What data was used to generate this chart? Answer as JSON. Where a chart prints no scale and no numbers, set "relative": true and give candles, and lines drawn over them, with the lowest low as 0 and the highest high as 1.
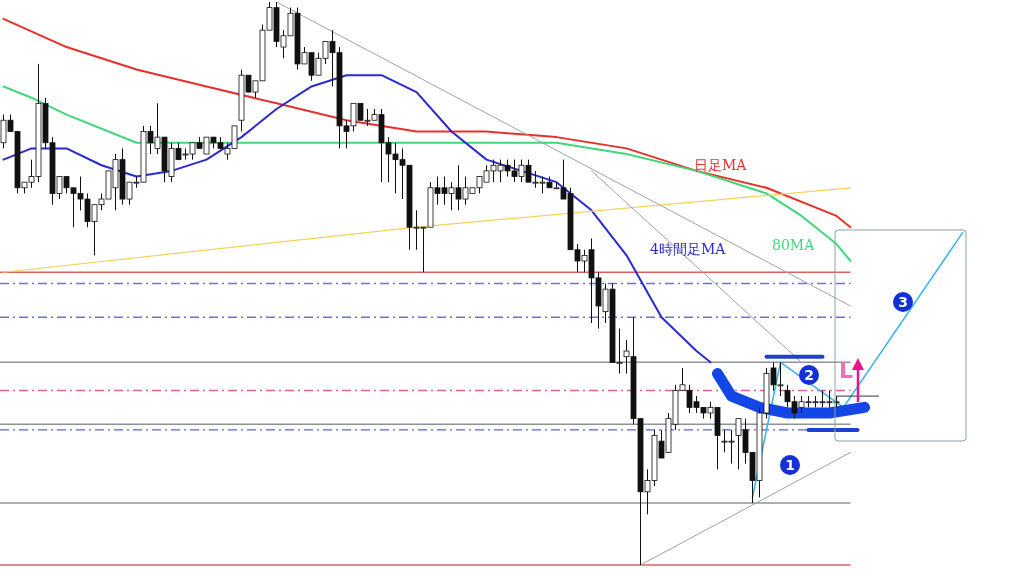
{
  "chart_data": {
    "type": "candlestick",
    "relative": true,
    "categories": [
      null,
      null,
      null,
      null,
      null,
      null,
      null,
      null,
      null,
      null,
      null,
      null,
      null,
      null,
      null,
      null,
      null,
      null,
      null,
      null,
      null,
      null,
      null,
      null,
      null,
      null,
      null,
      null,
      null,
      null,
      null,
      null,
      null,
      null,
      null,
      null,
      null,
      null,
      null,
      null,
      null,
      null,
      null,
      null,
      null,
      null,
      null,
      null,
      null,
      null,
      null,
      null,
      null,
      null,
      null,
      null,
      null,
      null,
      null,
      null,
      null,
      null,
      null,
      null,
      null,
      null,
      null,
      null,
      null,
      null,
      null,
      null,
      null,
      null,
      null,
      null,
      null,
      null,
      null,
      null,
      null,
      null,
      null,
      null,
      null,
      null,
      null,
      null,
      null,
      null,
      null,
      null,
      null,
      null,
      null,
      null,
      null,
      null,
      null,
      null,
      null,
      null,
      null,
      null,
      null,
      null,
      null,
      null,
      null,
      null,
      null,
      null,
      null,
      null,
      null,
      null,
      null,
      null,
      null,
      null,
      null,
      null,
      null,
      null,
      null,
      null,
      null,
      null,
      null,
      null,
      null,
      null,
      null,
      null,
      null,
      null,
      null,
      null
    ],
    "ohlc": [
      [
        0.75,
        0.8,
        0.74,
        0.79
      ],
      [
        0.79,
        0.8,
        0.77,
        0.77
      ],
      [
        0.77,
        0.77,
        0.66,
        0.67
      ],
      [
        0.67,
        0.68,
        0.66,
        0.68
      ],
      [
        0.68,
        0.72,
        0.67,
        0.69
      ],
      [
        0.69,
        0.89,
        0.68,
        0.82
      ],
      [
        0.82,
        0.83,
        0.74,
        0.75
      ],
      [
        0.75,
        0.76,
        0.64,
        0.66
      ],
      [
        0.66,
        0.69,
        0.65,
        0.69
      ],
      [
        0.69,
        0.69,
        0.66,
        0.67
      ],
      [
        0.67,
        0.67,
        0.6,
        0.66
      ],
      [
        0.66,
        0.69,
        0.63,
        0.65
      ],
      [
        0.65,
        0.66,
        0.6,
        0.61
      ],
      [
        0.61,
        0.64,
        0.55,
        0.64
      ],
      [
        0.64,
        0.66,
        0.63,
        0.65
      ],
      [
        0.65,
        0.7,
        0.65,
        0.7
      ],
      [
        0.67,
        0.73,
        0.63,
        0.72
      ],
      [
        0.72,
        0.74,
        0.64,
        0.65
      ],
      [
        0.65,
        0.68,
        0.64,
        0.68
      ],
      [
        0.68,
        0.69,
        0.67,
        0.68
      ],
      [
        0.68,
        0.78,
        0.68,
        0.77
      ],
      [
        0.77,
        0.78,
        0.73,
        0.75
      ],
      [
        0.74,
        0.82,
        0.73,
        0.76
      ],
      [
        0.76,
        0.76,
        0.68,
        0.7
      ],
      [
        0.69,
        0.75,
        0.68,
        0.74
      ],
      [
        0.74,
        0.75,
        0.72,
        0.72
      ],
      [
        0.73,
        0.74,
        0.72,
        0.73
      ],
      [
        0.73,
        0.75,
        0.72,
        0.75
      ],
      [
        0.75,
        0.76,
        0.74,
        0.74
      ],
      [
        0.73,
        0.76,
        0.73,
        0.76
      ],
      [
        0.76,
        0.76,
        0.74,
        0.75
      ],
      [
        0.75,
        0.76,
        0.74,
        0.74
      ],
      [
        0.73,
        0.75,
        0.72,
        0.74
      ],
      [
        0.74,
        0.78,
        0.74,
        0.78
      ],
      [
        0.79,
        0.88,
        0.77,
        0.87
      ],
      [
        0.87,
        0.87,
        0.84,
        0.84
      ],
      [
        0.84,
        0.86,
        0.83,
        0.86
      ],
      [
        0.86,
        0.96,
        0.86,
        0.95
      ],
      [
        0.95,
        1.0,
        0.95,
        0.99
      ],
      [
        0.99,
        1.0,
        0.92,
        0.93
      ],
      [
        0.92,
        0.95,
        0.9,
        0.94
      ],
      [
        0.94,
        0.99,
        0.94,
        0.98
      ],
      [
        0.98,
        0.99,
        0.88,
        0.89
      ],
      [
        0.89,
        0.92,
        0.89,
        0.91
      ],
      [
        0.91,
        0.91,
        0.86,
        0.87
      ],
      [
        0.87,
        0.91,
        0.87,
        0.9
      ],
      [
        0.9,
        0.93,
        0.89,
        0.93
      ],
      [
        0.93,
        0.95,
        0.85,
        0.91
      ],
      [
        0.91,
        0.92,
        0.74,
        0.78
      ],
      [
        0.78,
        0.79,
        0.74,
        0.77
      ],
      [
        0.78,
        0.82,
        0.77,
        0.82
      ],
      [
        0.82,
        0.82,
        0.79,
        0.79
      ],
      [
        0.79,
        0.81,
        0.78,
        0.79
      ],
      [
        0.79,
        0.81,
        0.79,
        0.8
      ],
      [
        0.8,
        0.81,
        0.68,
        0.75
      ],
      [
        0.75,
        0.76,
        0.68,
        0.73
      ],
      [
        0.73,
        0.75,
        0.66,
        0.72
      ],
      [
        0.72,
        0.74,
        0.65,
        0.71
      ],
      [
        0.71,
        0.71,
        0.56,
        0.6
      ],
      [
        0.6,
        0.63,
        0.56,
        0.6
      ],
      [
        0.6,
        0.6,
        0.52,
        0.6
      ],
      [
        0.6,
        0.68,
        0.6,
        0.67
      ],
      [
        0.67,
        0.69,
        0.64,
        0.66
      ],
      [
        0.67,
        0.69,
        0.64,
        0.66
      ],
      [
        0.66,
        0.68,
        0.63,
        0.67
      ],
      [
        0.67,
        0.71,
        0.63,
        0.65
      ],
      [
        0.65,
        0.69,
        0.64,
        0.67
      ],
      [
        0.66,
        0.67,
        0.66,
        0.67
      ],
      [
        0.67,
        0.69,
        0.66,
        0.69
      ],
      [
        0.68,
        0.71,
        0.68,
        0.7
      ],
      [
        0.7,
        0.72,
        0.68,
        0.71
      ],
      [
        0.7,
        0.72,
        0.68,
        0.71
      ],
      [
        0.71,
        0.72,
        0.69,
        0.7
      ],
      [
        0.7,
        0.72,
        0.68,
        0.69
      ],
      [
        0.69,
        0.72,
        0.68,
        0.71
      ],
      [
        0.71,
        0.72,
        0.68,
        0.68
      ],
      [
        0.68,
        0.7,
        0.67,
        0.68
      ],
      [
        0.68,
        0.69,
        0.66,
        0.68
      ],
      [
        0.68,
        0.69,
        0.67,
        0.67
      ],
      [
        0.67,
        0.68,
        0.67,
        0.67
      ],
      [
        0.67,
        0.72,
        0.65,
        0.65
      ],
      [
        0.66,
        0.67,
        0.56,
        0.56
      ],
      [
        0.56,
        0.57,
        0.52,
        0.54
      ],
      [
        0.54,
        0.56,
        0.52,
        0.55
      ],
      [
        0.56,
        0.58,
        0.43,
        0.51
      ],
      [
        0.51,
        0.52,
        0.42,
        0.46
      ],
      [
        0.45,
        0.5,
        0.43,
        0.49
      ],
      [
        0.49,
        0.5,
        0.36,
        0.36
      ],
      [
        0.36,
        0.42,
        0.34,
        0.36
      ],
      [
        0.37,
        0.4,
        0.34,
        0.38
      ],
      [
        0.37,
        0.44,
        0.25,
        0.26
      ],
      [
        0.26,
        0.26,
        0,
        0.13
      ],
      [
        0.13,
        0.17,
        0.09,
        0.15
      ],
      [
        0.15,
        0.24,
        0.14,
        0.23
      ],
      [
        0.22,
        0.24,
        0.19,
        0.19
      ],
      [
        0.2,
        0.27,
        0.2,
        0.26
      ],
      [
        0.25,
        0.32,
        0.24,
        0.31
      ],
      [
        0.31,
        0.35,
        0.31,
        0.32
      ],
      [
        0.31,
        0.32,
        0.27,
        0.28
      ],
      [
        0.29,
        0.3,
        0.27,
        0.28
      ],
      [
        0.28,
        0.28,
        0.26,
        0.27
      ],
      [
        0.27,
        0.29,
        0.26,
        0.28
      ],
      [
        0.28,
        0.28,
        0.17,
        0.23
      ],
      [
        0.22,
        0.24,
        0.2,
        0.22
      ],
      [
        0.22,
        0.24,
        0.18,
        0.22
      ],
      [
        0.23,
        0.26,
        0.17,
        0.26
      ],
      [
        0.24,
        0.26,
        0.18,
        0.2
      ],
      [
        0.2,
        0.2,
        0.11,
        0.15
      ],
      [
        0.15,
        0.28,
        0.12,
        0.27
      ],
      [
        0.27,
        0.35,
        0.26,
        0.34
      ],
      [
        0.35,
        0.36,
        0.31,
        0.32
      ],
      [
        0.32,
        0.36,
        0.3,
        0.32
      ],
      [
        0.31,
        0.32,
        0.28,
        0.29
      ],
      [
        0.29,
        0.3,
        0.26,
        0.27
      ],
      [
        0.28,
        0.3,
        0.27,
        0.29
      ],
      [
        0.29,
        0.3,
        0.28,
        0.29
      ],
      [
        0.29,
        0.3,
        0.28,
        0.29
      ],
      [
        0.29,
        0.31,
        0.28,
        0.29
      ],
      [
        0.29,
        0.31,
        0.28,
        0.29
      ],
      [
        0.29,
        0.3,
        0.28,
        0.29
      ],
      null,
      null,
      null,
      null,
      null,
      null,
      null,
      null,
      null,
      null,
      null,
      null,
      null,
      null,
      null,
      null,
      null,
      null
    ],
    "series": [
      {
        "type": "line",
        "name": "日足MA",
        "color": "#e8302a",
        "values": [
          0.97,
          null,
          null,
          null,
          null,
          null,
          null,
          null,
          null,
          0.92,
          null,
          null,
          null,
          null,
          null,
          null,
          null,
          null,
          null,
          0.88,
          null,
          null,
          null,
          null,
          null,
          null,
          null,
          null,
          null,
          0.85,
          null,
          null,
          null,
          null,
          null,
          null,
          null,
          null,
          null,
          0.82,
          null,
          null,
          null,
          null,
          null,
          null,
          null,
          null,
          null,
          0.79,
          null,
          null,
          null,
          null,
          null,
          null,
          null,
          null,
          null,
          0.77,
          null,
          null,
          null,
          null,
          null,
          null,
          null,
          null,
          null,
          0.77,
          null,
          null,
          null,
          null,
          null,
          null,
          null,
          null,
          null,
          0.76,
          null,
          null,
          null,
          null,
          null,
          null,
          null,
          null,
          null,
          0.74,
          null,
          null,
          null,
          null,
          null,
          null,
          null,
          null,
          null,
          0.7,
          null,
          null,
          null,
          null,
          null,
          null,
          null,
          null,
          null,
          0.67,
          null,
          null,
          null,
          null,
          null,
          null,
          null,
          null,
          null,
          0.62,
          null,
          0.6,
          null,
          null,
          null,
          null,
          null,
          null,
          null,
          null,
          null,
          null,
          null,
          null,
          null,
          null,
          null,
          null
        ]
      },
      {
        "type": "line",
        "name": "80MA",
        "color": "#3fd77a",
        "values": [
          0.85,
          null,
          null,
          null,
          0.83,
          null,
          null,
          null,
          null,
          0.8,
          null,
          null,
          null,
          null,
          null,
          null,
          null,
          null,
          null,
          0.75,
          null,
          null,
          null,
          null,
          null,
          null,
          null,
          null,
          null,
          0.75,
          null,
          null,
          null,
          null,
          null,
          null,
          null,
          null,
          null,
          0.75,
          null,
          null,
          null,
          null,
          null,
          null,
          null,
          null,
          null,
          0.75,
          null,
          null,
          null,
          null,
          null,
          null,
          null,
          null,
          null,
          0.75,
          null,
          null,
          null,
          null,
          null,
          null,
          null,
          null,
          null,
          0.75,
          null,
          null,
          null,
          null,
          null,
          null,
          null,
          null,
          null,
          0.75,
          null,
          null,
          null,
          null,
          null,
          null,
          null,
          null,
          null,
          0.73,
          null,
          null,
          null,
          null,
          null,
          null,
          null,
          null,
          null,
          0.7,
          null,
          null,
          null,
          null,
          null,
          null,
          null,
          null,
          null,
          0.66,
          null,
          null,
          null,
          null,
          0.62,
          null,
          null,
          null,
          null,
          0.57,
          null,
          0.54,
          null,
          null,
          null,
          null,
          null,
          null,
          null,
          null,
          null,
          null,
          null,
          null,
          null,
          null,
          null,
          null
        ]
      },
      {
        "type": "line",
        "name": "4時間足MA",
        "color": "#2a2ad0",
        "values": [
          0.72,
          null,
          null,
          null,
          0.74,
          null,
          null,
          null,
          null,
          0.74,
          null,
          null,
          null,
          null,
          0.71,
          null,
          null,
          null,
          null,
          0.69,
          null,
          null,
          null,
          null,
          0.7,
          null,
          null,
          null,
          null,
          0.72,
          null,
          null,
          null,
          null,
          0.76,
          null,
          null,
          null,
          null,
          0.81,
          null,
          null,
          null,
          null,
          0.85,
          null,
          null,
          null,
          null,
          0.87,
          null,
          null,
          null,
          null,
          0.87,
          null,
          null,
          null,
          null,
          0.84,
          null,
          null,
          null,
          null,
          0.77,
          null,
          null,
          null,
          null,
          0.72,
          null,
          null,
          null,
          null,
          0.7,
          null,
          null,
          null,
          null,
          0.68,
          null,
          null,
          null,
          null,
          0.63,
          null,
          null,
          null,
          null,
          0.55,
          null,
          null,
          null,
          null,
          0.44,
          null,
          null,
          null,
          null,
          0.38,
          null,
          0.36,
          null,
          null,
          null,
          null,
          null,
          null,
          null,
          null,
          null,
          null,
          null,
          null,
          null,
          null,
          null,
          null,
          null,
          null,
          null,
          null,
          null,
          null,
          null,
          null,
          null,
          null,
          null,
          null,
          null,
          null,
          null,
          null,
          null,
          null,
          null,
          null
        ]
      },
      {
        "type": "line",
        "color": "#f5d25a",
        "values": [
          0.52,
          null,
          null,
          null,
          null,
          null,
          null,
          null,
          null,
          null,
          null,
          null,
          null,
          null,
          null,
          null,
          null,
          null,
          null,
          null,
          null,
          null,
          null,
          null,
          null,
          null,
          null,
          null,
          null,
          null,
          null,
          null,
          null,
          null,
          null,
          null,
          null,
          null,
          null,
          null,
          null,
          null,
          null,
          null,
          null,
          null,
          null,
          null,
          null,
          null,
          null,
          null,
          null,
          null,
          null,
          null,
          null,
          null,
          null,
          0.6,
          null,
          null,
          null,
          null,
          null,
          null,
          null,
          null,
          null,
          null,
          null,
          null,
          null,
          null,
          null,
          null,
          null,
          null,
          null,
          null,
          null,
          null,
          null,
          null,
          null,
          null,
          null,
          null,
          null,
          null,
          null,
          null,
          null,
          null,
          null,
          null,
          null,
          null,
          null,
          null,
          null,
          null,
          null,
          null,
          null,
          null,
          null,
          null,
          null,
          null,
          null,
          null,
          null,
          null,
          null,
          null,
          null,
          null,
          null,
          null,
          null,
          0.67,
          null,
          null,
          null,
          null,
          null,
          null,
          null,
          null,
          null,
          null,
          null,
          null,
          null,
          null,
          null,
          null
        ]
      },
      {
        "type": "line",
        "color": "#9aa4ae",
        "values": [
          null,
          null,
          null,
          null,
          null,
          null,
          null,
          null,
          null,
          null,
          null,
          null,
          null,
          null,
          null,
          null,
          null,
          null,
          null,
          null,
          null,
          null,
          null,
          null,
          null,
          null,
          null,
          null,
          null,
          null,
          null,
          null,
          null,
          null,
          null,
          null,
          null,
          null,
          null,
          1.0,
          null,
          null,
          null,
          null,
          null,
          null,
          null,
          null,
          null,
          null,
          null,
          null,
          null,
          null,
          null,
          null,
          null,
          null,
          null,
          null,
          null,
          null,
          null,
          null,
          null,
          null,
          null,
          null,
          null,
          null,
          null,
          null,
          null,
          null,
          null,
          null,
          null,
          null,
          null,
          null,
          null,
          null,
          null,
          null,
          null,
          null,
          null,
          null,
          null,
          null,
          null,
          null,
          null,
          null,
          null,
          null,
          null,
          null,
          null,
          null,
          null,
          null,
          null,
          null,
          null,
          null,
          null,
          null,
          null,
          null,
          null,
          null,
          null,
          null,
          null,
          null,
          null,
          null,
          null,
          null,
          null,
          0.46,
          null,
          null,
          null,
          null,
          null,
          null,
          null,
          null,
          null,
          null,
          null,
          null,
          null,
          null,
          null,
          null
        ]
      },
      {
        "type": "line",
        "color": "#9aa4ae",
        "values": [
          null,
          null,
          null,
          null,
          null,
          null,
          null,
          null,
          null,
          null,
          null,
          null,
          null,
          null,
          null,
          null,
          null,
          null,
          null,
          null,
          null,
          null,
          null,
          null,
          null,
          null,
          null,
          null,
          null,
          null,
          null,
          null,
          null,
          null,
          null,
          null,
          null,
          null,
          null,
          null,
          null,
          null,
          null,
          null,
          null,
          null,
          null,
          null,
          null,
          null,
          null,
          null,
          null,
          null,
          null,
          null,
          null,
          null,
          null,
          null,
          null,
          null,
          null,
          null,
          null,
          null,
          null,
          null,
          null,
          null,
          null,
          null,
          null,
          null,
          null,
          null,
          null,
          null,
          null,
          null,
          null,
          null,
          null,
          null,
          0.7,
          null,
          null,
          null,
          null,
          null,
          null,
          null,
          null,
          null,
          null,
          null,
          null,
          null,
          null,
          null,
          null,
          null,
          null,
          null,
          null,
          null,
          null,
          null,
          null,
          null,
          null,
          null,
          null,
          null,
          0.36,
          null,
          null,
          null,
          null,
          null,
          null,
          null,
          null,
          null,
          null,
          null,
          null,
          null,
          null,
          null,
          null,
          null,
          null,
          null,
          null,
          null,
          null,
          null
        ]
      },
      {
        "type": "line",
        "color": "#9aa4ae",
        "values": [
          null,
          null,
          null,
          null,
          null,
          null,
          null,
          null,
          null,
          null,
          null,
          null,
          null,
          null,
          null,
          null,
          null,
          null,
          null,
          null,
          null,
          null,
          null,
          null,
          null,
          null,
          null,
          null,
          null,
          null,
          null,
          null,
          null,
          null,
          null,
          null,
          null,
          null,
          null,
          null,
          null,
          null,
          null,
          null,
          null,
          null,
          null,
          null,
          null,
          null,
          null,
          null,
          null,
          null,
          null,
          null,
          null,
          null,
          null,
          null,
          null,
          null,
          null,
          null,
          null,
          null,
          null,
          null,
          null,
          null,
          null,
          null,
          null,
          null,
          null,
          null,
          null,
          null,
          null,
          null,
          null,
          null,
          null,
          null,
          null,
          null,
          null,
          null,
          null,
          null,
          null,
          0,
          null,
          null,
          null,
          null,
          null,
          null,
          null,
          null,
          null,
          null,
          null,
          null,
          null,
          null,
          null,
          null,
          null,
          null,
          null,
          null,
          null,
          null,
          null,
          null,
          null,
          null,
          null,
          null,
          null,
          0.2,
          null,
          null,
          null,
          null,
          null,
          null,
          null,
          null,
          null,
          null,
          null,
          null,
          null,
          null,
          null,
          null
        ]
      },
      {
        "type": "line",
        "color": "#3cb4ec",
        "values": [
          null,
          null,
          null,
          null,
          null,
          null,
          null,
          null,
          null,
          null,
          null,
          null,
          null,
          null,
          null,
          null,
          null,
          null,
          null,
          null,
          null,
          null,
          null,
          null,
          null,
          null,
          null,
          null,
          null,
          null,
          null,
          null,
          null,
          null,
          null,
          null,
          null,
          null,
          null,
          null,
          null,
          null,
          null,
          null,
          null,
          null,
          null,
          null,
          null,
          null,
          null,
          null,
          null,
          null,
          null,
          null,
          null,
          null,
          null,
          null,
          null,
          null,
          null,
          null,
          null,
          null,
          null,
          null,
          null,
          null,
          null,
          null,
          null,
          null,
          null,
          null,
          null,
          null,
          null,
          null,
          null,
          null,
          null,
          null,
          null,
          null,
          null,
          null,
          null,
          null,
          null,
          null,
          null,
          null,
          null,
          null,
          null,
          null,
          null,
          null,
          null,
          null,
          null,
          null,
          null,
          null,
          null,
          0.12,
          null,
          null,
          null,
          0.36,
          null,
          null,
          null,
          null,
          null,
          null,
          null,
          null,
          0.28,
          null,
          null,
          null,
          null,
          null,
          null,
          null,
          null,
          null,
          null,
          null,
          null,
          null,
          null,
          null,
          null,
          0.59
        ]
      },
      {
        "type": "line",
        "color": "#1246e6",
        "values": [
          null,
          null,
          null,
          null,
          null,
          null,
          null,
          null,
          null,
          null,
          null,
          null,
          null,
          null,
          null,
          null,
          null,
          null,
          null,
          null,
          null,
          null,
          null,
          null,
          null,
          null,
          null,
          null,
          null,
          null,
          null,
          null,
          null,
          null,
          null,
          null,
          null,
          null,
          null,
          null,
          null,
          null,
          null,
          null,
          null,
          null,
          null,
          null,
          null,
          null,
          null,
          null,
          null,
          null,
          null,
          null,
          null,
          null,
          null,
          null,
          null,
          null,
          null,
          null,
          null,
          null,
          null,
          null,
          null,
          null,
          null,
          null,
          null,
          null,
          null,
          null,
          null,
          null,
          null,
          null,
          null,
          null,
          null,
          null,
          null,
          null,
          null,
          null,
          null,
          null,
          null,
          null,
          null,
          null,
          null,
          null,
          null,
          null,
          null,
          null,
          null,
          null,
          0.34,
          null,
          0.3,
          null,
          null,
          null,
          0.28,
          null,
          null,
          null,
          0.27,
          null,
          null,
          null,
          null,
          null,
          0.27,
          null,
          null,
          null,
          null,
          0.28,
          null,
          null,
          null,
          null,
          null,
          null,
          null,
          null,
          null,
          null,
          null,
          null,
          null,
          null
        ]
      },
      {
        "type": "line",
        "color": "#2040d0",
        "values": [
          null,
          null,
          null,
          null,
          null,
          null,
          null,
          null,
          null,
          null,
          null,
          null,
          null,
          null,
          null,
          null,
          null,
          null,
          null,
          null,
          null,
          null,
          null,
          null,
          null,
          null,
          null,
          null,
          null,
          null,
          null,
          null,
          null,
          null,
          null,
          null,
          null,
          null,
          null,
          null,
          null,
          null,
          null,
          null,
          null,
          null,
          null,
          null,
          null,
          null,
          null,
          null,
          null,
          null,
          null,
          null,
          null,
          null,
          null,
          null,
          null,
          null,
          null,
          null,
          null,
          null,
          null,
          null,
          null,
          null,
          null,
          null,
          null,
          null,
          null,
          null,
          null,
          null,
          null,
          null,
          null,
          null,
          null,
          null,
          null,
          null,
          null,
          null,
          null,
          null,
          null,
          null,
          null,
          null,
          null,
          null,
          null,
          null,
          null,
          null,
          null,
          null,
          null,
          null,
          null,
          null,
          null,
          null,
          null,
          0.37,
          null,
          null,
          null,
          null,
          null,
          null,
          null,
          0.37,
          null,
          null,
          null,
          null,
          null,
          null,
          null,
          null,
          null,
          null,
          null,
          null,
          null,
          null,
          null,
          null,
          null,
          null,
          null,
          null
        ]
      },
      {
        "type": "line",
        "color": "#2040d0",
        "values": [
          null,
          null,
          null,
          null,
          null,
          null,
          null,
          null,
          null,
          null,
          null,
          null,
          null,
          null,
          null,
          null,
          null,
          null,
          null,
          null,
          null,
          null,
          null,
          null,
          null,
          null,
          null,
          null,
          null,
          null,
          null,
          null,
          null,
          null,
          null,
          null,
          null,
          null,
          null,
          null,
          null,
          null,
          null,
          null,
          null,
          null,
          null,
          null,
          null,
          null,
          null,
          null,
          null,
          null,
          null,
          null,
          null,
          null,
          null,
          null,
          null,
          null,
          null,
          null,
          null,
          null,
          null,
          null,
          null,
          null,
          null,
          null,
          null,
          null,
          null,
          null,
          null,
          null,
          null,
          null,
          null,
          null,
          null,
          null,
          null,
          null,
          null,
          null,
          null,
          null,
          null,
          null,
          null,
          null,
          null,
          null,
          null,
          null,
          null,
          null,
          null,
          null,
          null,
          null,
          null,
          null,
          null,
          null,
          null,
          null,
          null,
          null,
          null,
          null,
          null,
          0.24,
          null,
          null,
          null,
          null,
          null,
          null,
          0.24,
          null,
          null,
          null,
          null,
          null,
          null,
          null,
          null,
          null,
          null,
          null,
          null,
          null,
          null,
          null
        ]
      },
      {
        "type": "line",
        "color": "#333333",
        "values": [
          null,
          null,
          null,
          null,
          null,
          null,
          null,
          null,
          null,
          null,
          null,
          null,
          null,
          null,
          null,
          null,
          null,
          null,
          null,
          null,
          null,
          null,
          null,
          null,
          null,
          null,
          null,
          null,
          null,
          null,
          null,
          null,
          null,
          null,
          null,
          null,
          null,
          null,
          null,
          null,
          null,
          null,
          null,
          null,
          null,
          null,
          null,
          null,
          null,
          null,
          null,
          null,
          null,
          null,
          null,
          null,
          null,
          null,
          null,
          null,
          null,
          null,
          null,
          null,
          null,
          null,
          null,
          null,
          null,
          null,
          null,
          null,
          null,
          null,
          null,
          null,
          null,
          null,
          null,
          null,
          null,
          null,
          null,
          null,
          null,
          null,
          null,
          null,
          null,
          null,
          null,
          null,
          null,
          null,
          null,
          null,
          null,
          null,
          null,
          null,
          null,
          null,
          null,
          null,
          null,
          null,
          null,
          null,
          null,
          null,
          null,
          null,
          null,
          null,
          null,
          null,
          null,
          null,
          null,
          0.3,
          null,
          null,
          null,
          null,
          null,
          0.3,
          null,
          null,
          null,
          null,
          null,
          null,
          null,
          null,
          null,
          null,
          null,
          null
        ]
      }
    ],
    "ref_lines": [
      {
        "axis": "y",
        "value": 0.52,
        "color": "#e06060",
        "line_style": "solid"
      },
      {
        "axis": "y",
        "value": 0.5,
        "color": "#7070d0",
        "line_style": "dashed"
      },
      {
        "axis": "y",
        "value": 0.44,
        "color": "#7070d0",
        "line_style": "dashed"
      },
      {
        "axis": "y",
        "value": 0.36,
        "color": "#8c9499",
        "line_style": "solid"
      },
      {
        "axis": "y",
        "value": 0.31,
        "color": "#e0609a",
        "line_style": "dashed"
      },
      {
        "axis": "y",
        "value": 0.25,
        "color": "#8c9499",
        "line_style": "solid"
      },
      {
        "axis": "y",
        "value": 0.24,
        "color": "#6060d0",
        "line_style": "dashed"
      },
      {
        "axis": "y",
        "value": 0.11,
        "color": "#8c9499",
        "line_style": "solid"
      },
      {
        "axis": "y",
        "value": 0,
        "color": "#e06060",
        "line_style": "solid"
      }
    ],
    "annotations": [
      "1",
      "2",
      "3",
      "L"
    ]
  }
}
